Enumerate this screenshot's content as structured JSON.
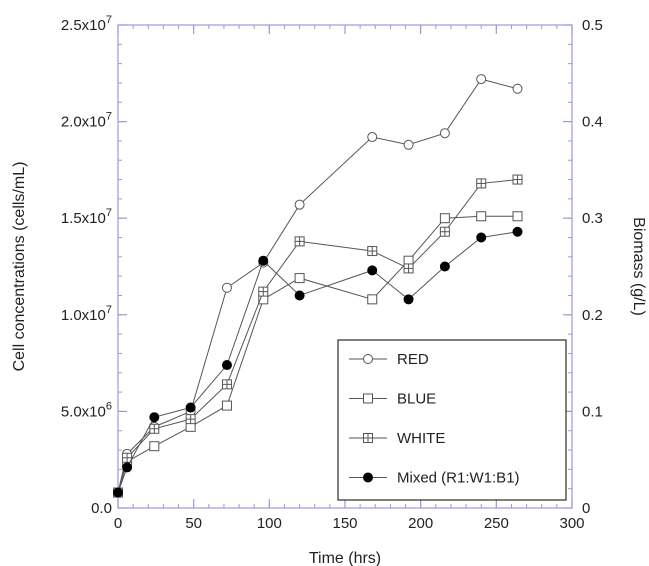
{
  "chart_data": {
    "type": "line",
    "xlabel": "Time (hrs)",
    "ylabel": "Cell concentrations (cells/mL)",
    "y2label": "Biomass (g/L)",
    "xlim": [
      0,
      300
    ],
    "ylim": [
      0,
      25000000
    ],
    "y2lim": [
      0,
      0.5
    ],
    "x_ticks": [
      0,
      50,
      100,
      150,
      200,
      250,
      300
    ],
    "x_tick_labels": [
      "0",
      "50",
      "100",
      "150",
      "200",
      "250",
      "300"
    ],
    "y_ticks": [
      0,
      5000000,
      10000000,
      15000000,
      20000000,
      25000000
    ],
    "y_tick_labels": [
      {
        "mantissa": "0.0",
        "exponent": ""
      },
      {
        "mantissa": "5.0x10",
        "exponent": "6"
      },
      {
        "mantissa": "1.0x10",
        "exponent": "7"
      },
      {
        "mantissa": "1.5x10",
        "exponent": "7"
      },
      {
        "mantissa": "2.0x10",
        "exponent": "7"
      },
      {
        "mantissa": "2.5x10",
        "exponent": "7"
      }
    ],
    "y2_ticks": [
      0,
      0.1,
      0.2,
      0.3,
      0.4,
      0.5
    ],
    "y2_tick_labels": [
      "0",
      "0.1",
      "0.2",
      "0.3",
      "0.4",
      "0.5"
    ],
    "grid": false,
    "legend_position": "bottom-right",
    "series": [
      {
        "name": "RED",
        "marker": "circle-open",
        "x": [
          0,
          6,
          24,
          48,
          72,
          96,
          120,
          168,
          192,
          216,
          240,
          264
        ],
        "y": [
          800000,
          2800000,
          4200000,
          5000000,
          11400000,
          12700000,
          15700000,
          19200000,
          18800000,
          19400000,
          22200000,
          21700000
        ]
      },
      {
        "name": "BLUE",
        "marker": "square-open",
        "x": [
          0,
          6,
          24,
          48,
          72,
          96,
          120,
          168,
          192,
          216,
          240,
          264
        ],
        "y": [
          800000,
          2400000,
          3200000,
          4200000,
          5300000,
          10800000,
          11900000,
          10800000,
          12800000,
          15000000,
          15100000,
          15100000
        ]
      },
      {
        "name": "WHITE",
        "marker": "square-cross",
        "x": [
          0,
          6,
          24,
          48,
          72,
          96,
          120,
          168,
          192,
          216,
          240,
          264
        ],
        "y": [
          800000,
          2600000,
          4100000,
          4600000,
          6400000,
          11200000,
          13800000,
          13300000,
          12400000,
          14300000,
          16800000,
          17000000
        ]
      },
      {
        "name": "Mixed (R1:W1:B1)",
        "marker": "circle-filled",
        "x": [
          0,
          6,
          24,
          48,
          72,
          96,
          120,
          168,
          192,
          216,
          240,
          264
        ],
        "y": [
          800000,
          2100000,
          4700000,
          5200000,
          7400000,
          12800000,
          11000000,
          12300000,
          10800000,
          12500000,
          14000000,
          14300000
        ]
      }
    ],
    "colors": {
      "axis_frame": "#9999dd",
      "series_line": "#555555",
      "marker_stroke": "#555555",
      "marker_fill_filled": "#000000",
      "text": "#222222"
    }
  }
}
